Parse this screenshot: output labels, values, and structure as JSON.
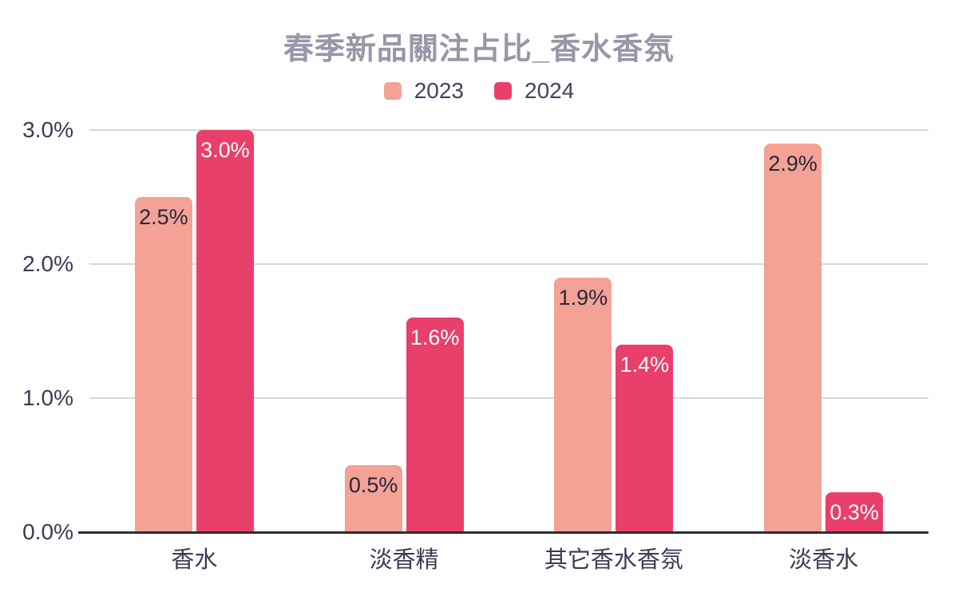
{
  "chart_data": {
    "type": "bar",
    "title": "春季新品關注占比_香水香氛",
    "categories": [
      "香水",
      "淡香精",
      "其它香水香氛",
      "淡香水"
    ],
    "series": [
      {
        "name": "2023",
        "color": "#F3A295",
        "label_color": "#26273E",
        "values": [
          2.5,
          0.5,
          1.9,
          2.9
        ],
        "labels": [
          "2.5%",
          "0.5%",
          "1.9%",
          "2.9%"
        ]
      },
      {
        "name": "2024",
        "color": "#E83F6B",
        "label_color": "#FFFFFF",
        "values": [
          3.0,
          1.6,
          1.4,
          0.3
        ],
        "labels": [
          "3.0%",
          "1.6%",
          "1.4%",
          "0.3%"
        ]
      }
    ],
    "ylim": [
      0,
      3.0
    ],
    "yticks": [
      {
        "value": 0.0,
        "label": "0.0%"
      },
      {
        "value": 1.0,
        "label": "1.0%"
      },
      {
        "value": 2.0,
        "label": "2.0%"
      },
      {
        "value": 3.0,
        "label": "3.0%"
      }
    ],
    "grid": true,
    "legend_position": "top",
    "value_labels_position": "inside-top"
  },
  "colors": {
    "series_2023": "#F3A295",
    "series_2024": "#E83F6B",
    "title_text": "#9697A7",
    "axis_text": "#3A3B54",
    "gridline": "#D7D7D7",
    "baseline": "#2D2D2F",
    "background": "#FFFFFF"
  }
}
